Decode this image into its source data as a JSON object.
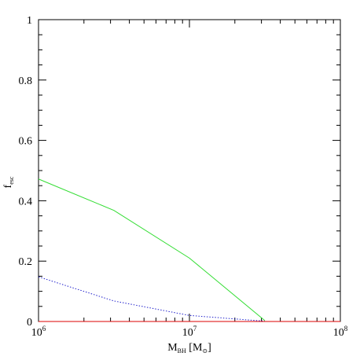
{
  "chart_data": {
    "type": "line",
    "x_scale": "log",
    "y_scale": "linear",
    "xlim": [
      1000000,
      100000000
    ],
    "ylim": [
      0,
      1
    ],
    "grid": false,
    "x_ticks": [
      {
        "value": 1000000,
        "base": "10",
        "exp": "6"
      },
      {
        "value": 10000000,
        "base": "10",
        "exp": "7"
      },
      {
        "value": 100000000,
        "base": "10",
        "exp": "8"
      }
    ],
    "y_ticks": [
      {
        "value": 0,
        "label": "0"
      },
      {
        "value": 0.2,
        "label": "0.2"
      },
      {
        "value": 0.4,
        "label": "0.4"
      },
      {
        "value": 0.6,
        "label": "0.6"
      },
      {
        "value": 0.8,
        "label": "0.8"
      },
      {
        "value": 1,
        "label": "1"
      }
    ],
    "xlabel": {
      "main": "M",
      "sub": "BH",
      "units": " [M",
      "units_sub": "⊙",
      "close": "]"
    },
    "ylabel": {
      "main": "f",
      "sub": "esc"
    },
    "series": [
      {
        "color": "#33dd33",
        "dash": "solid",
        "x": [
          1000000,
          3160000,
          10000000,
          31600000
        ],
        "y": [
          0.472,
          0.368,
          0.21,
          0.003
        ]
      },
      {
        "color": "#2222cc",
        "dash": "dotted",
        "x": [
          1000000,
          3160000,
          10000000,
          31600000
        ],
        "y": [
          0.148,
          0.068,
          0.02,
          0.001
        ]
      },
      {
        "color": "#dd0000",
        "dash": "solid",
        "x": [
          1000000,
          100000000
        ],
        "y": [
          0.0,
          0.0
        ]
      }
    ]
  }
}
